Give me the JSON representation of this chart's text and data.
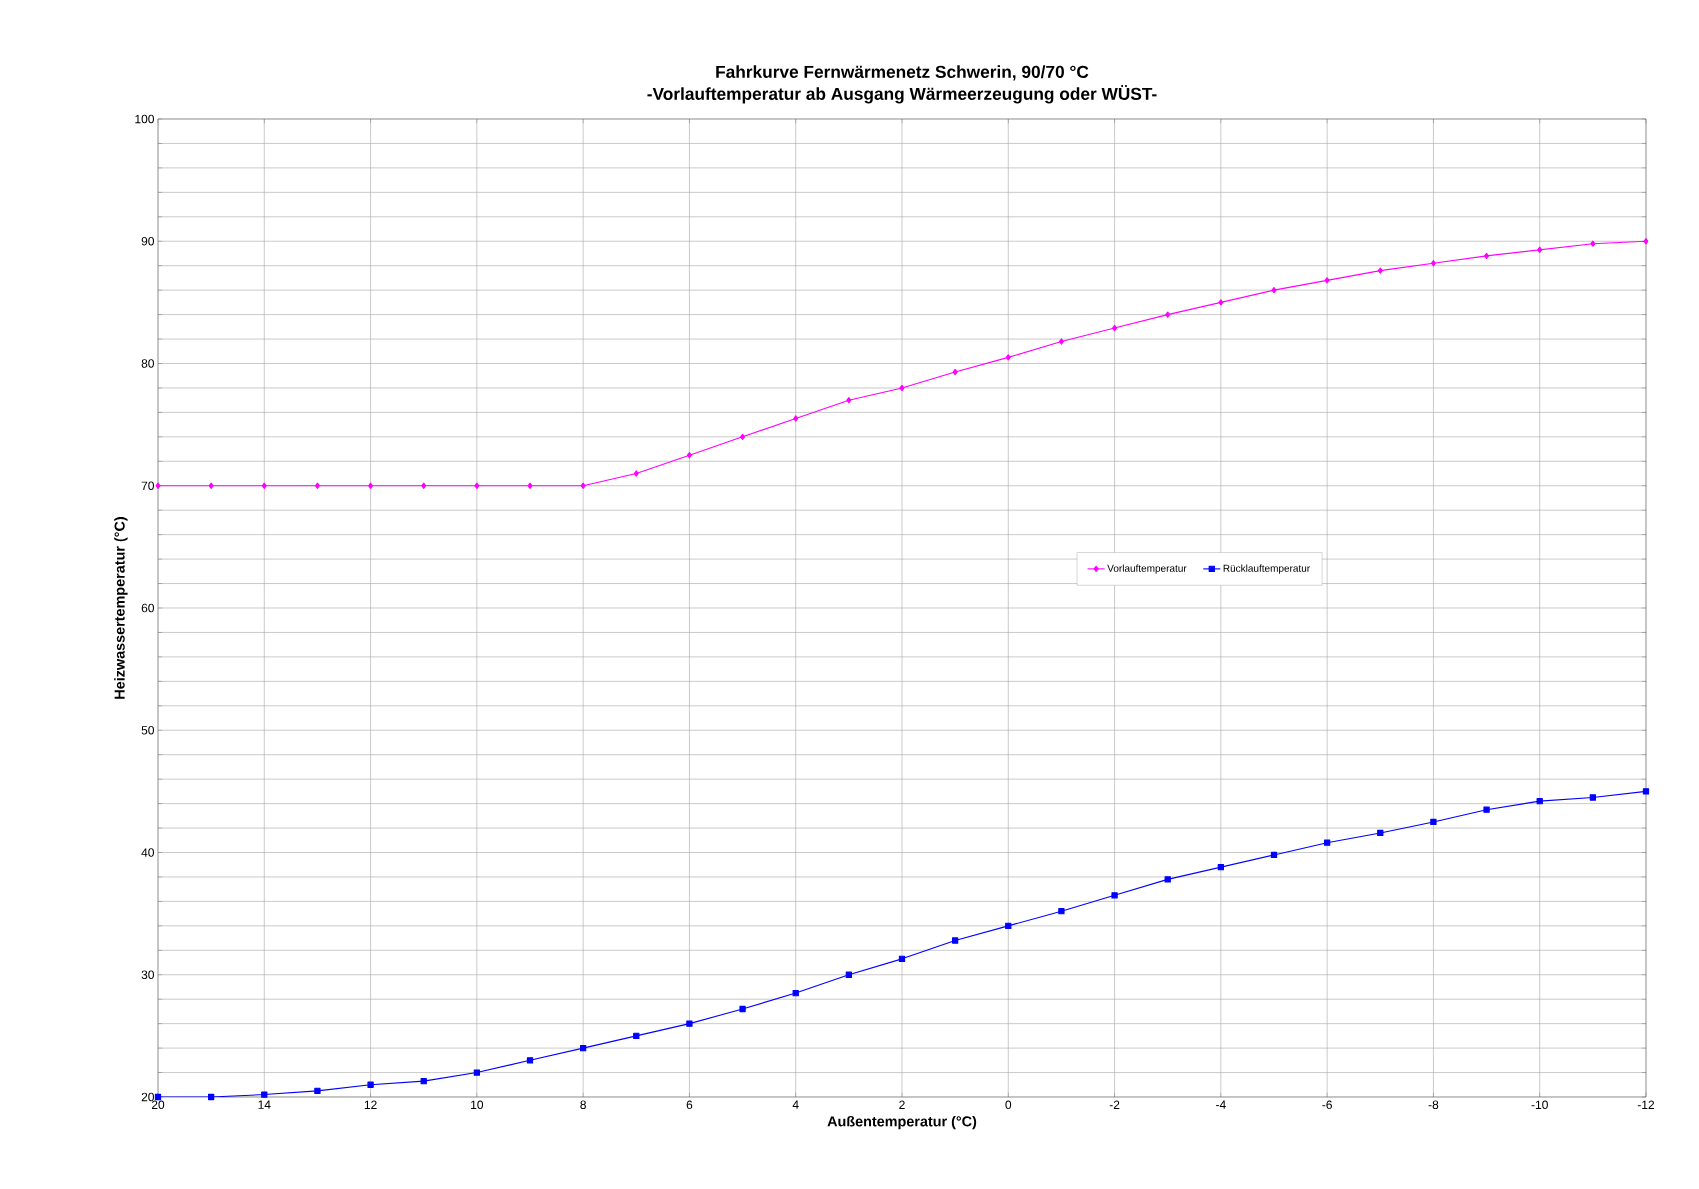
{
  "chart_data": {
    "type": "line",
    "title": "Fahrkurve Fernwärmenetz Schwerin, 90/70 °C",
    "subtitle": "-Vorlauftemperatur  ab Ausgang Wärmeerzeugung oder WÜST-",
    "xlabel": "Außentemperatur (°C)",
    "ylabel": "Heizwassertemperatur (°C)",
    "categories": [
      "20",
      null,
      "14",
      null,
      "12",
      null,
      "10",
      null,
      "8",
      null,
      "6",
      null,
      "4",
      null,
      "2",
      null,
      "0",
      null,
      "-2",
      null,
      "-4",
      null,
      "-6",
      null,
      "-8",
      null,
      "-10",
      null,
      "-12"
    ],
    "series": [
      {
        "name": "Vorlauftemperatur",
        "color": "#ff00ff",
        "marker": "diamond",
        "values": [
          70,
          70,
          70,
          70,
          70,
          70,
          70,
          70,
          70,
          71,
          72.5,
          74,
          75.5,
          77,
          78,
          79.3,
          80.5,
          81.8,
          82.9,
          84,
          85,
          86,
          86.8,
          87.6,
          88.2,
          88.8,
          89.3,
          89.8,
          90
        ]
      },
      {
        "name": "Rücklauftemperatur",
        "color": "#0000ff",
        "marker": "square",
        "values": [
          20,
          20,
          20.2,
          20.5,
          21,
          21.3,
          22,
          23,
          24,
          25,
          26,
          27.2,
          28.5,
          30,
          31.3,
          32.8,
          34,
          35.2,
          36.5,
          37.8,
          38.8,
          39.8,
          40.8,
          41.6,
          42.5,
          43.5,
          44.2,
          44.5,
          45
        ]
      }
    ],
    "ylim": [
      20,
      100
    ],
    "yticks": [
      20,
      {
        "value": 22,
        "label": null
      },
      {
        "value": 24,
        "label": null
      },
      {
        "value": 26,
        "label": null
      },
      {
        "value": 28,
        "label": null
      },
      30,
      {
        "value": 32,
        "label": null
      },
      {
        "value": 34,
        "label": null
      },
      {
        "value": 36,
        "label": null
      },
      {
        "value": 38,
        "label": null
      },
      40,
      {
        "value": 42,
        "label": null
      },
      {
        "value": 44,
        "label": null
      },
      {
        "value": 46,
        "label": null
      },
      {
        "value": 48,
        "label": null
      },
      50,
      {
        "value": 52,
        "label": null
      },
      {
        "value": 54,
        "label": null
      },
      {
        "value": 56,
        "label": null
      },
      {
        "value": 58,
        "label": null
      },
      60,
      {
        "value": 62,
        "label": null
      },
      {
        "value": 64,
        "label": null
      },
      {
        "value": 66,
        "label": null
      },
      {
        "value": 68,
        "label": null
      },
      70,
      {
        "value": 72,
        "label": null
      },
      {
        "value": 74,
        "label": null
      },
      {
        "value": 76,
        "label": null
      },
      {
        "value": 78,
        "label": null
      },
      80,
      {
        "value": 82,
        "label": null
      },
      {
        "value": 84,
        "label": null
      },
      {
        "value": 86,
        "label": null
      },
      {
        "value": 88,
        "label": null
      },
      90,
      {
        "value": 92,
        "label": null
      },
      {
        "value": 94,
        "label": null
      },
      {
        "value": 96,
        "label": null
      },
      {
        "value": 98,
        "label": null
      },
      100
    ],
    "grid": true,
    "legend": "right",
    "line_style": "solid"
  }
}
